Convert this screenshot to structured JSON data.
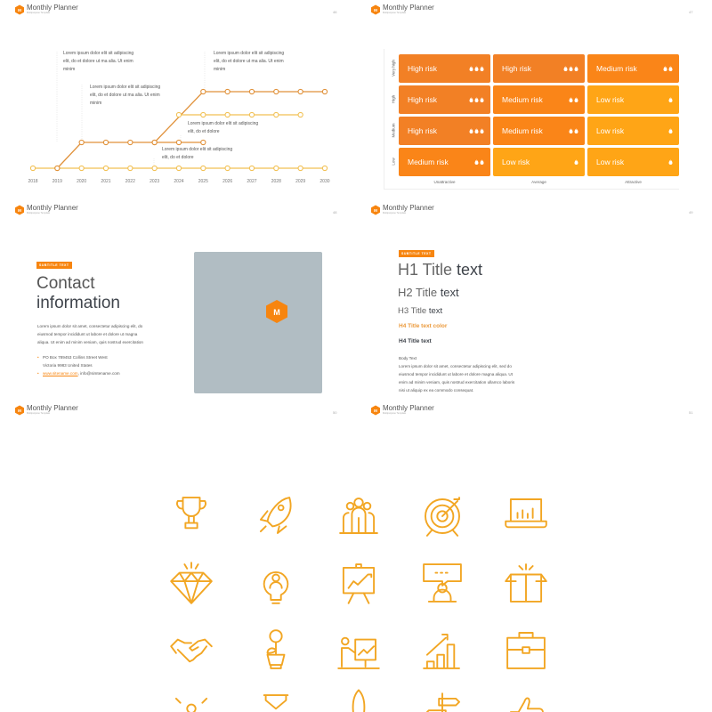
{
  "brand": {
    "title": "Monthly Planner",
    "subtitle": "Multipurpose Template",
    "logo_letter": "M",
    "accent": "#F7850F"
  },
  "slides": {
    "timeline": {
      "page": "46",
      "years": [
        "2018",
        "2019",
        "2020",
        "2021",
        "2022",
        "2023",
        "2024",
        "2025",
        "2026",
        "2027",
        "2028",
        "2029",
        "2030"
      ],
      "annotations": [
        "Lorem ipsum dolor elit sit adipiscing elit, do et dolore ut ma alia. Ut enim minim",
        "Lorem ipsum dolor elit sit adipiscing elit, do et dolore ut ma alia. Ut enim minim",
        "Lorem ipsum dolor elit sit adipiscing elit, do et dolore ut ma alia. Ut enim minim",
        "Lorem ipsum dolor elit sit adipiscing elit, do et dolore",
        "Lorem ipsum dolor elit sit adipiscing elit, do et dolore"
      ],
      "colors": {
        "line_dark": "#E0913A",
        "line_light": "#F2C155"
      }
    },
    "risk": {
      "page": "47",
      "rows": [
        "Very high",
        "High",
        "Medium",
        "Low"
      ],
      "cols": [
        "Unattractive",
        "Average",
        "Attractive"
      ],
      "cells": [
        [
          {
            "label": "High risk",
            "flames": 3
          },
          {
            "label": "High risk",
            "flames": 3
          },
          {
            "label": "Medium risk",
            "flames": 2
          }
        ],
        [
          {
            "label": "High risk",
            "flames": 3
          },
          {
            "label": "Medium risk",
            "flames": 2
          },
          {
            "label": "Low risk",
            "flames": 1
          }
        ],
        [
          {
            "label": "High risk",
            "flames": 3
          },
          {
            "label": "Medium risk",
            "flames": 2
          },
          {
            "label": "Low risk",
            "flames": 1
          }
        ],
        [
          {
            "label": "Medium risk",
            "flames": 2
          },
          {
            "label": "Low risk",
            "flames": 1
          },
          {
            "label": "Low risk",
            "flames": 1
          }
        ]
      ],
      "colors": {
        "high": "#F27A1A",
        "medium": "#FA7F0C",
        "low": "#FFA10A"
      }
    },
    "contact": {
      "page": "48",
      "badge": "SUBTITLE TEXT",
      "title_light": "Contact",
      "title_bold": "information",
      "body": [
        "Lorem ipsum dolor sit amet, consectetur adipiscing elit, do",
        "eiusmod tempor incididunt ut labore et dolore ut magna",
        "aliqua. Ut enim ad minim veniam, quis nostrud exercitation"
      ],
      "address": [
        "PO Box 789453 Collins Street West",
        "Victoria 9983 United States"
      ],
      "website": "www.sitename.com",
      "email": ", info@simtename.com",
      "image_color": "#B1BDC3"
    },
    "typography": {
      "page": "49",
      "badge": "SUBTITLE TEXT",
      "h1": {
        "light": "H1 Title ",
        "bold": "text"
      },
      "h2": {
        "light": "H2 Title ",
        "bold": "text"
      },
      "h3": {
        "light": "H3 Title ",
        "bold": "text"
      },
      "h4_color": "H4 Title text color",
      "h4": "H4 Title text",
      "body_label": "Body Text",
      "body": [
        "Lorem ipsum dolor sit amet, consectetur adipiscing elit, sed do",
        "eiusmod tempor incididunt ut labore et dolore magna aliqua. Ut",
        "enim ad minim veniam, quis nostrud exercitation ullamco laboris",
        "nisi ut aliquip ex ea commodo consequat."
      ]
    },
    "icons": {
      "pages": [
        "50",
        "51"
      ],
      "color": "#F2A623",
      "items": [
        "trophy-icon",
        "rocket-icon",
        "team-icon",
        "target-icon",
        "laptop-chart-icon",
        "diamond-icon",
        "idea-bulb-icon",
        "presentation-board-icon",
        "speech-bubble-icon",
        "open-box-icon",
        "handshake-icon",
        "money-plant-icon",
        "presenter-icon",
        "growth-chart-icon",
        "briefcase-icon",
        "network-person-icon",
        "hourglass-icon",
        "rocket-launch-icon",
        "signpost-icon",
        "thumbs-up-icon"
      ]
    }
  }
}
